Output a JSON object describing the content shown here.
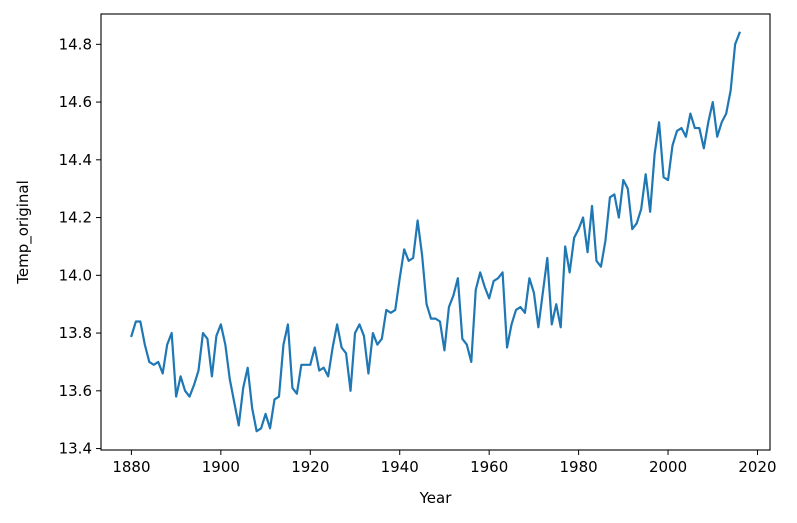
{
  "chart_data": {
    "type": "line",
    "title": "",
    "xlabel": "Year",
    "ylabel": "Temp_original",
    "xlim": [
      1873.2,
      2022.8
    ],
    "ylim": [
      13.395,
      14.905
    ],
    "x_ticks": [
      1880,
      1900,
      1920,
      1940,
      1960,
      1980,
      2000,
      2020
    ],
    "y_ticks": [
      13.4,
      13.6,
      13.8,
      14.0,
      14.2,
      14.4,
      14.6,
      14.8
    ],
    "y_tick_labels": [
      "13.4",
      "13.6",
      "13.8",
      "14.0",
      "14.2",
      "14.4",
      "14.6",
      "14.8"
    ],
    "grid": false,
    "line_color": "#1f77b4",
    "series": [
      {
        "x": [
          1880,
          1881,
          1882,
          1883,
          1884,
          1885,
          1886,
          1887,
          1888,
          1889,
          1890,
          1891,
          1892,
          1893,
          1894,
          1895,
          1896,
          1897,
          1898,
          1899,
          1900,
          1901,
          1902,
          1903,
          1904,
          1905,
          1906,
          1907,
          1908,
          1909,
          1910,
          1911,
          1912,
          1913,
          1914,
          1915,
          1916,
          1917,
          1918,
          1919,
          1920,
          1921,
          1922,
          1923,
          1924,
          1925,
          1926,
          1927,
          1928,
          1929,
          1930,
          1931,
          1932,
          1933,
          1934,
          1935,
          1936,
          1937,
          1938,
          1939,
          1940,
          1941,
          1942,
          1943,
          1944,
          1945,
          1946,
          1947,
          1948,
          1949,
          1950,
          1951,
          1952,
          1953,
          1954,
          1955,
          1956,
          1957,
          1958,
          1959,
          1960,
          1961,
          1962,
          1963,
          1964,
          1965,
          1966,
          1967,
          1968,
          1969,
          1970,
          1971,
          1972,
          1973,
          1974,
          1975,
          1976,
          1977,
          1978,
          1979,
          1980,
          1981,
          1982,
          1983,
          1984,
          1985,
          1986,
          1987,
          1988,
          1989,
          1990,
          1991,
          1992,
          1993,
          1994,
          1995,
          1996,
          1997,
          1998,
          1999,
          2000,
          2001,
          2002,
          2003,
          2004,
          2005,
          2006,
          2007,
          2008,
          2009,
          2010,
          2011,
          2012,
          2013,
          2014,
          2015,
          2016
        ],
        "values": [
          13.79,
          13.84,
          13.84,
          13.76,
          13.7,
          13.69,
          13.7,
          13.66,
          13.76,
          13.8,
          13.58,
          13.65,
          13.6,
          13.58,
          13.62,
          13.67,
          13.8,
          13.78,
          13.65,
          13.79,
          13.83,
          13.76,
          13.64,
          13.56,
          13.48,
          13.61,
          13.68,
          13.54,
          13.46,
          13.47,
          13.52,
          13.47,
          13.57,
          13.58,
          13.76,
          13.83,
          13.61,
          13.59,
          13.69,
          13.69,
          13.69,
          13.75,
          13.67,
          13.68,
          13.65,
          13.75,
          13.83,
          13.75,
          13.73,
          13.6,
          13.8,
          13.83,
          13.79,
          13.66,
          13.8,
          13.76,
          13.78,
          13.88,
          13.87,
          13.88,
          13.99,
          14.09,
          14.05,
          14.06,
          14.19,
          14.07,
          13.9,
          13.85,
          13.85,
          13.84,
          13.74,
          13.89,
          13.93,
          13.99,
          13.78,
          13.76,
          13.7,
          13.95,
          14.01,
          13.96,
          13.92,
          13.98,
          13.99,
          14.01,
          13.75,
          13.83,
          13.88,
          13.89,
          13.87,
          13.99,
          13.94,
          13.82,
          13.94,
          14.06,
          13.83,
          13.9,
          13.82,
          14.1,
          14.01,
          14.13,
          14.16,
          14.2,
          14.08,
          14.24,
          14.05,
          14.03,
          14.12,
          14.27,
          14.28,
          14.2,
          14.33,
          14.3,
          14.16,
          14.18,
          14.23,
          14.35,
          14.22,
          14.42,
          14.53,
          14.34,
          14.33,
          14.45,
          14.5,
          14.51,
          14.48,
          14.56,
          14.51,
          14.51,
          14.44,
          14.53,
          14.6,
          14.48,
          14.53,
          14.56,
          14.64,
          14.8,
          14.84
        ]
      }
    ]
  }
}
